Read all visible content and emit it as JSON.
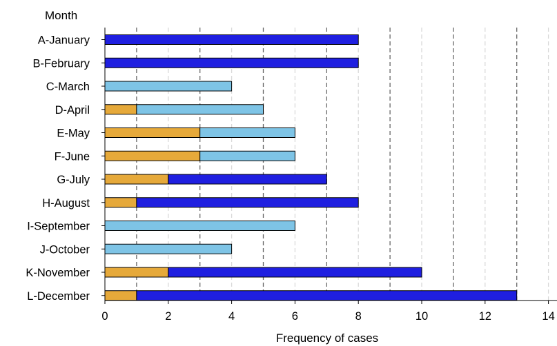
{
  "chart_data": {
    "type": "bar",
    "orientation": "horizontal",
    "stacked": true,
    "title": "",
    "ylabel": "Month",
    "xlabel": "Frequency of cases",
    "categories": [
      "A-January",
      "B-February",
      "C-March",
      "D-April",
      "E-May",
      "F-June",
      "G-July",
      "H-August",
      "I-September",
      "J-October",
      "K-November",
      "L-December"
    ],
    "xlim": [
      0,
      14
    ],
    "xticks": [
      "0",
      "2",
      "4",
      "6",
      "8",
      "10",
      "12",
      "14"
    ],
    "grid": "vertical dashed at every integer",
    "legend": "none",
    "series": [
      {
        "color": "#E6A93A",
        "values": [
          0,
          0,
          0,
          1,
          3,
          3,
          2,
          1,
          0,
          0,
          2,
          1
        ]
      },
      {
        "color": "#7EC4E6",
        "values": [
          0,
          0,
          4,
          4,
          3,
          3,
          0,
          0,
          6,
          4,
          0,
          0
        ]
      },
      {
        "color": "#1F1FE0",
        "values": [
          8,
          8,
          0,
          0,
          0,
          0,
          5,
          7,
          0,
          0,
          8,
          12
        ]
      }
    ]
  }
}
